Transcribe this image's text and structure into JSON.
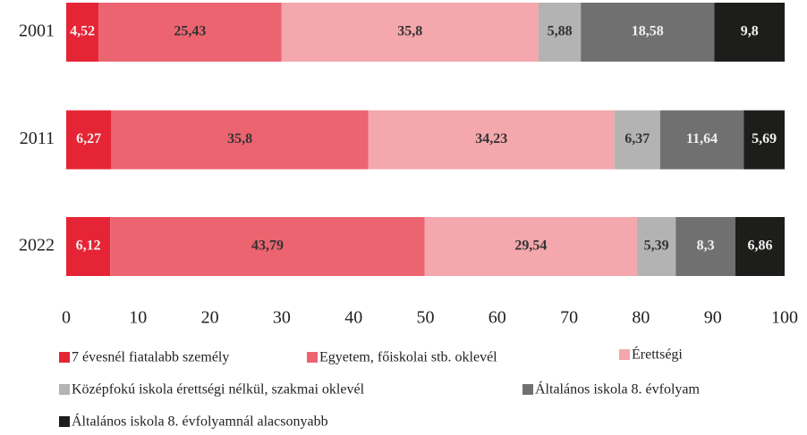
{
  "chart_data": {
    "type": "stacked_bar_horizontal",
    "categories": [
      "2001",
      "2011",
      "2022"
    ],
    "series": [
      {
        "name": "7 évesnél fiatalabb személy",
        "color": "#e52535",
        "values": [
          4.52,
          6.27,
          6.12
        ],
        "value_labels": [
          "4,52",
          "6,27",
          "6,12"
        ]
      },
      {
        "name": "Egyetem, főiskolai stb. oklevél",
        "color": "#ec6470",
        "values": [
          25.43,
          35.8,
          43.79
        ],
        "value_labels": [
          "25,43",
          "35,8",
          "43,79"
        ]
      },
      {
        "name": "Érettségi",
        "color": "#f4a7ad",
        "values": [
          35.8,
          34.23,
          29.54
        ],
        "value_labels": [
          "35,8",
          "34,23",
          "29,54"
        ]
      },
      {
        "name": "Középfokú iskola érettségi nélkül, szakmai oklevél",
        "color": "#b3b3b3",
        "values": [
          5.88,
          6.37,
          5.39
        ],
        "value_labels": [
          "5,88",
          "6,37",
          "5,39"
        ]
      },
      {
        "name": "Általános iskola 8. évfolyam",
        "color": "#707070",
        "values": [
          18.58,
          11.64,
          8.3
        ],
        "value_labels": [
          "18,58",
          "11,64",
          "8,3"
        ]
      },
      {
        "name": "Általános iskola 8. évfolyamnál alacsonyabb",
        "color": "#1d1d1b",
        "values": [
          9.8,
          5.69,
          6.86
        ],
        "value_labels": [
          "9,8",
          "5,69",
          "6,86"
        ]
      }
    ],
    "xlim": [
      0,
      100
    ],
    "xticks": [
      0,
      10,
      20,
      30,
      40,
      50,
      60,
      70,
      80,
      90,
      100
    ],
    "grid": false
  }
}
